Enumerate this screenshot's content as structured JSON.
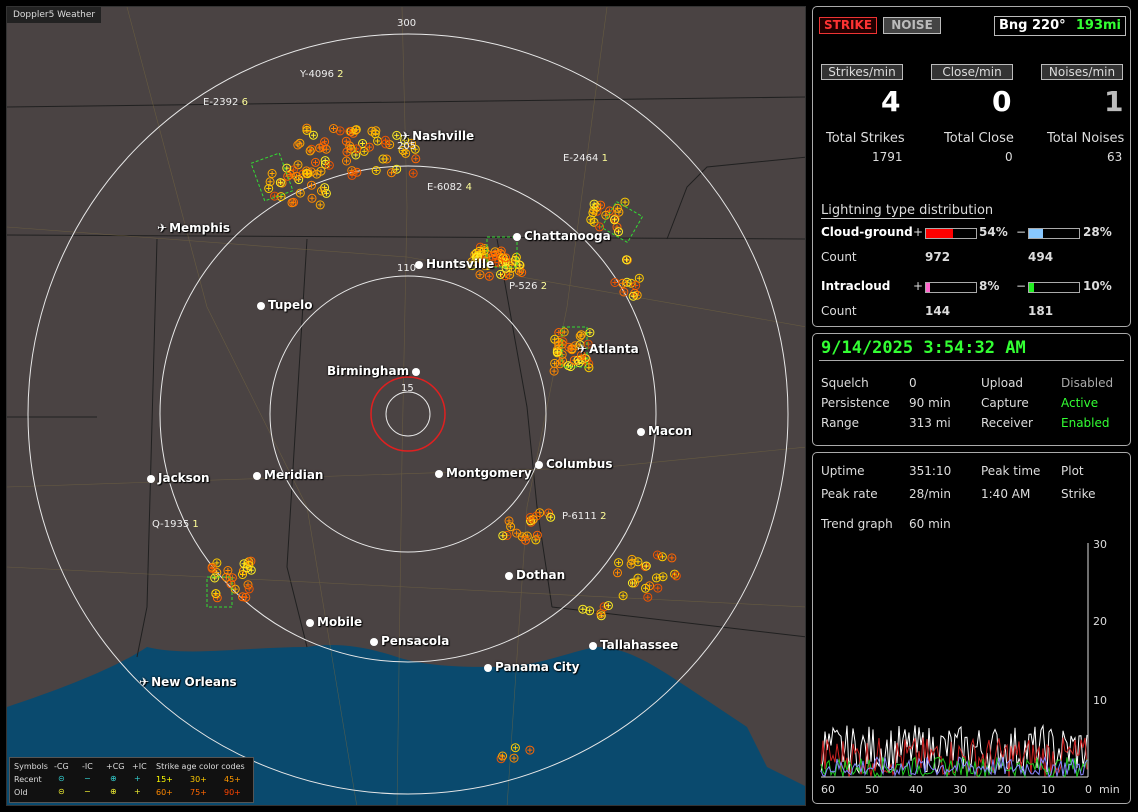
{
  "app_title": "Doppler5 Weather",
  "map": {
    "range_rings": [
      "15",
      "110",
      "205",
      "300"
    ],
    "cities": [
      {
        "name": "Nashville",
        "type": "airport"
      },
      {
        "name": "Memphis",
        "type": "airport"
      },
      {
        "name": "Chattanooga",
        "type": "dot"
      },
      {
        "name": "Huntsville",
        "type": "dot"
      },
      {
        "name": "Tupelo",
        "type": "dot"
      },
      {
        "name": "Birmingham",
        "type": "dot"
      },
      {
        "name": "Atlanta",
        "type": "airport"
      },
      {
        "name": "Macon",
        "type": "dot"
      },
      {
        "name": "Jackson",
        "type": "dot"
      },
      {
        "name": "Meridian",
        "type": "dot"
      },
      {
        "name": "Montgomery",
        "type": "dot"
      },
      {
        "name": "Columbus",
        "type": "dot"
      },
      {
        "name": "Dothan",
        "type": "dot"
      },
      {
        "name": "Mobile",
        "type": "dot"
      },
      {
        "name": "Pensacola",
        "type": "dot"
      },
      {
        "name": "Tallahassee",
        "type": "dot"
      },
      {
        "name": "Panama City",
        "type": "dot"
      },
      {
        "name": "New Orleans",
        "type": "airport"
      }
    ],
    "storm_cells": [
      {
        "id": "Y-4096",
        "val": "2"
      },
      {
        "id": "E-2392",
        "val": "6"
      },
      {
        "id": "E-2464",
        "val": "1"
      },
      {
        "id": "E-6082",
        "val": "4"
      },
      {
        "id": "P-526",
        "val": "2"
      },
      {
        "id": "P-6111",
        "val": "2"
      },
      {
        "id": "Q-1935",
        "val": "1"
      }
    ]
  },
  "legend": {
    "symbols": "Symbols",
    "cols": [
      "-CG",
      "-IC",
      "+CG",
      "+IC"
    ],
    "age_title": "Strike age color codes",
    "recent": "Recent",
    "old": "Old",
    "recent_ages": [
      "15+",
      "30+",
      "45+"
    ],
    "old_ages": [
      "60+",
      "75+",
      "90+"
    ],
    "recent_symbols": [
      "⊝",
      "−",
      "⊕",
      "+"
    ],
    "old_symbols": [
      "⊝",
      "−",
      "⊕",
      "+"
    ]
  },
  "status": {
    "strike_btn": "STRIKE",
    "noise_btn": "NOISE",
    "bearing": "Bng 220°",
    "distance": "193mi"
  },
  "rates": {
    "strikes_label": "Strikes/min",
    "close_label": "Close/min",
    "noises_label": "Noises/min",
    "strikes": "4",
    "close": "0",
    "noises": "1"
  },
  "totals": {
    "strikes_label": "Total Strikes",
    "close_label": "Total Close",
    "noises_label": "Total Noises",
    "strikes": "1791",
    "close": "0",
    "noises": "63"
  },
  "distribution": {
    "title": "Lightning type distribution",
    "cg_label": "Cloud-ground",
    "ic_label": "Intracloud",
    "count_label": "Count",
    "plus": "+",
    "minus": "−",
    "cg_pos_pct": "54%",
    "cg_neg_pct": "28%",
    "ic_pos_pct": "8%",
    "ic_neg_pct": "10%",
    "cg_pos_fill": 0.54,
    "cg_neg_fill": 0.28,
    "ic_pos_fill": 0.08,
    "ic_neg_fill": 0.1,
    "cg_pos_count": "972",
    "cg_neg_count": "494",
    "ic_pos_count": "144",
    "ic_neg_count": "181",
    "colors": {
      "cg_pos": "#ff0000",
      "cg_neg": "#88c8ff",
      "ic_pos": "#ff66cc",
      "ic_neg": "#22ee22"
    }
  },
  "settings": {
    "datetime": "9/14/2025 3:54:32 AM",
    "squelch_label": "Squelch",
    "squelch": "0",
    "upload_label": "Upload",
    "upload": "Disabled",
    "persistence_label": "Persistence",
    "persistence": "90 min",
    "capture_label": "Capture",
    "capture": "Active",
    "range_label": "Range",
    "range": "313 mi",
    "receiver_label": "Receiver",
    "receiver": "Enabled"
  },
  "stats": {
    "uptime_label": "Uptime",
    "uptime": "351:10",
    "peak_time_label": "Peak time",
    "plot_label": "Plot",
    "peak_rate_label": "Peak rate",
    "peak_rate": "28/min",
    "peak_time": "1:40 AM",
    "plot": "Strike",
    "trend_label": "Trend graph",
    "trend": "60 min"
  },
  "trend_axis": {
    "y_ticks": [
      "30",
      "20",
      "10"
    ],
    "x_ticks": [
      "60",
      "50",
      "40",
      "30",
      "20",
      "10",
      "0"
    ],
    "x_unit": "min"
  }
}
